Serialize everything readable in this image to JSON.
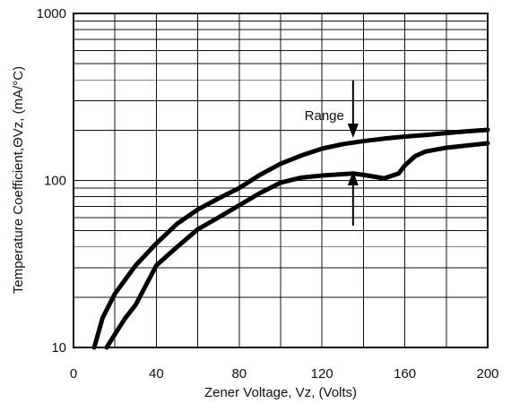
{
  "chart_data": {
    "type": "line",
    "xlabel": "Zener Voltage, Vz, (Volts)",
    "ylabel": "Temperature Coefficient,ΘVz,  (mA/°C)",
    "xlim": [
      0,
      200
    ],
    "ylim": [
      10,
      1000
    ],
    "yscale": "log",
    "grid": true,
    "x_ticks": [
      0,
      40,
      80,
      120,
      160,
      200
    ],
    "x_tick_labels": [
      "0",
      "40",
      "80",
      "120",
      "160",
      "200"
    ],
    "y_ticks": [
      10,
      100,
      1000
    ],
    "y_tick_labels": [
      "10",
      "100",
      "1000"
    ],
    "series": [
      {
        "x": [
          10,
          14,
          20,
          30,
          40,
          50,
          60,
          70,
          80,
          90,
          100,
          110,
          120,
          130,
          140,
          150,
          160,
          170,
          180,
          190,
          200
        ],
        "y": [
          10,
          15,
          21,
          31,
          42,
          55,
          67,
          78,
          90,
          108,
          126,
          141,
          155,
          165,
          172,
          178,
          183,
          187,
          192,
          197,
          201
        ]
      },
      {
        "x": [
          16,
          20,
          25,
          30,
          40,
          50,
          60,
          70,
          80,
          90,
          100,
          110,
          120,
          130,
          135,
          140,
          150,
          157,
          160,
          165,
          170,
          180,
          190,
          200
        ],
        "y": [
          10,
          12,
          15,
          18,
          31,
          40,
          51,
          60,
          71,
          84,
          97,
          104,
          107,
          109,
          110,
          108,
          103,
          110,
          123,
          140,
          149,
          157,
          162,
          167
        ]
      }
    ],
    "annotations": [
      {
        "text": "Range",
        "x": 135
      }
    ]
  }
}
